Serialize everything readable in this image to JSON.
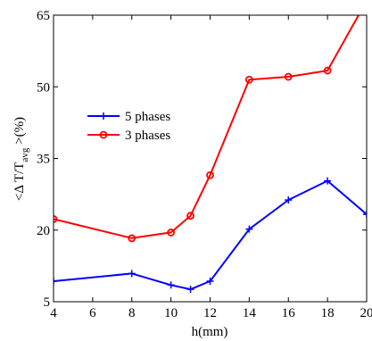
{
  "chart_data": {
    "type": "line",
    "xlabel": "h(mm)",
    "ylabel": {
      "prefix": "<Δ T/T",
      "subscript": "avg",
      "suffix": " >(%)"
    },
    "xlim": [
      4,
      20
    ],
    "ylim": [
      5,
      65
    ],
    "xticks": [
      4,
      6,
      8,
      10,
      12,
      14,
      16,
      18,
      20
    ],
    "yticks": [
      5,
      20,
      35,
      50,
      65
    ],
    "grid": false,
    "legend_position": "upper-left",
    "series": [
      {
        "name": "5 phases",
        "color": "#0000ff",
        "marker": "plus",
        "x": [
          4,
          8,
          10,
          11,
          12,
          14,
          16,
          18,
          20
        ],
        "y": [
          9.3,
          10.9,
          8.5,
          7.6,
          9.3,
          20.2,
          26.3,
          30.3,
          23.3
        ]
      },
      {
        "name": "3 phases",
        "color": "#ff0000",
        "marker": "circle",
        "x": [
          4,
          8,
          10,
          11,
          12,
          14,
          16,
          18,
          20
        ],
        "y": [
          22.3,
          18.3,
          19.5,
          23.0,
          31.5,
          51.5,
          52.1,
          53.4,
          68.0
        ]
      }
    ]
  }
}
